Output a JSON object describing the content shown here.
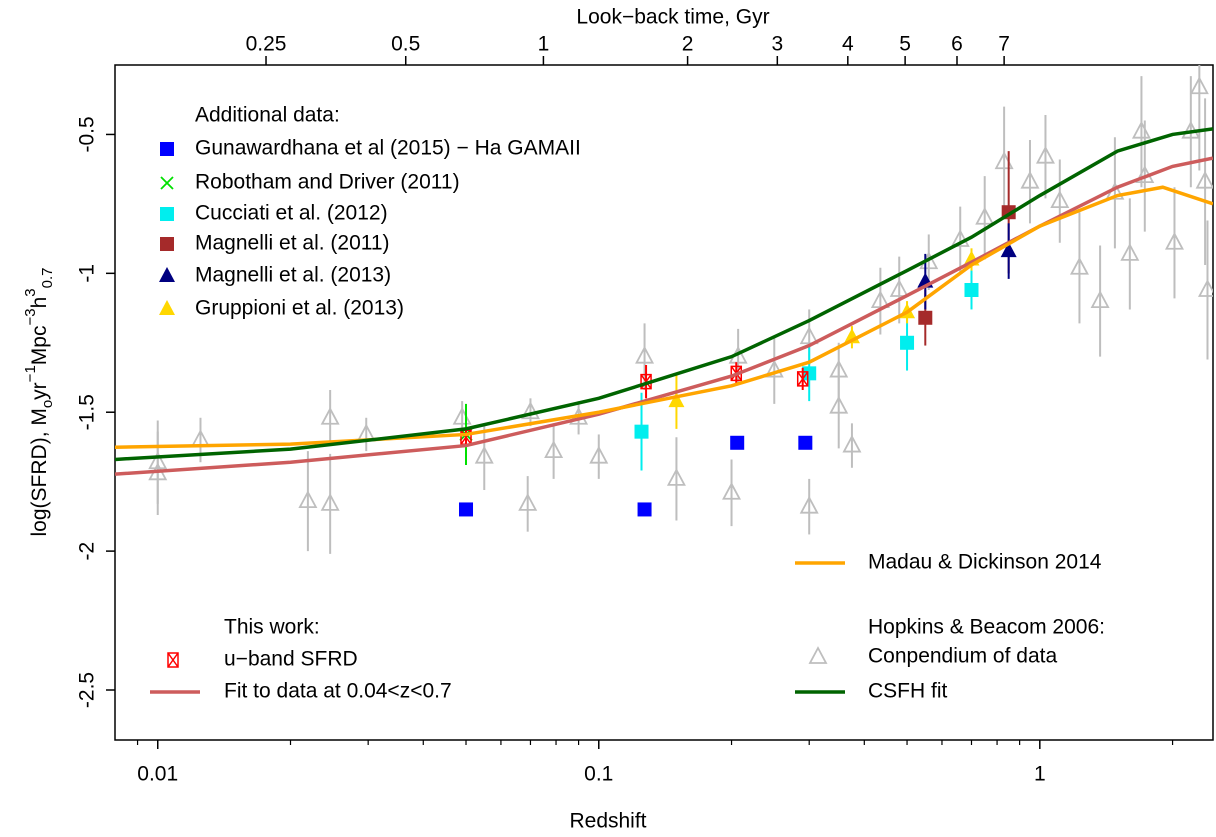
{
  "chart_data": {
    "type": "scatter",
    "xlabel": "Redshift",
    "x2label": "Look−back time, Gyr",
    "ylabel": [
      {
        "text": "log(SFRD), M"
      },
      {
        "text": "o",
        "shift": "sub"
      },
      {
        "text": "yr"
      },
      {
        "text": "−1",
        "shift": "super"
      },
      {
        "text": "Mpc"
      },
      {
        "text": "−3",
        "shift": "super"
      },
      {
        "text": "h"
      },
      {
        "text": "3",
        "shift": "super"
      },
      {
        "text": "0.7",
        "shift": "sub"
      }
    ],
    "xscale": "log",
    "xlim": [
      0.008,
      2.47
    ],
    "ylim": [
      -2.68,
      -0.25
    ],
    "xticks": [
      0.01,
      0.1,
      1
    ],
    "xminorticks": [
      0.009,
      0.02,
      0.03,
      0.04,
      0.05,
      0.06,
      0.07,
      0.08,
      0.09,
      0.2,
      0.3,
      0.4,
      0.5,
      0.6,
      0.7,
      0.8,
      0.9,
      2
    ],
    "x2ticks": [
      {
        "value": 0.0176,
        "label": "0.25"
      },
      {
        "value": 0.0365,
        "label": "0.5"
      },
      {
        "value": 0.0749,
        "label": "1"
      },
      {
        "value": 0.159,
        "label": "2"
      },
      {
        "value": 0.254,
        "label": "3"
      },
      {
        "value": 0.367,
        "label": "4"
      },
      {
        "value": 0.495,
        "label": "5"
      },
      {
        "value": 0.649,
        "label": "6"
      },
      {
        "value": 0.83,
        "label": "7"
      }
    ],
    "yticks": [
      -2.5,
      -2,
      -1.5,
      -1,
      -0.5
    ],
    "legend_titles": [
      "Additional data:",
      "This work:",
      "Hopkins & Beacom 2006:"
    ],
    "series": [
      {
        "name": "Gunawardhana et al (2015) − Ha GAMAII",
        "color": "#0000ff",
        "marker": "square",
        "x": [
          0.05,
          0.127,
          0.206,
          0.294
        ],
        "values": [
          -1.85,
          -1.85,
          -1.61,
          -1.61
        ]
      },
      {
        "name": "Robotham and Driver (2011)",
        "color": "#00e000",
        "marker": "x",
        "x": [
          0.05
        ],
        "values": [
          -1.58
        ],
        "yerr": [
          0.11
        ]
      },
      {
        "name": "Cucciati et al. (2012)",
        "color": "#00eeee",
        "marker": "square",
        "x": [
          0.125,
          0.3,
          0.5,
          0.7
        ],
        "values": [
          -1.57,
          -1.36,
          -1.25,
          -1.06
        ],
        "yerr": [
          0.14,
          0.1,
          0.1,
          0.07
        ]
      },
      {
        "name": "Magnelli et al. (2011)",
        "color": "#a52a2a",
        "marker": "square",
        "x": [
          0.55,
          0.85
        ],
        "values": [
          -1.16,
          -0.78
        ],
        "yerr": [
          0.1,
          0.22
        ]
      },
      {
        "name": "Magnelli et al. (2013)",
        "color": "#000080",
        "marker": "triangle",
        "x": [
          0.55,
          0.85
        ],
        "values": [
          -1.03,
          -0.92
        ],
        "yerr": [
          0.1,
          0.1
        ]
      },
      {
        "name": "Gruppioni et al. (2013)",
        "color": "#ffd700",
        "marker": "triangle",
        "x": [
          0.15,
          0.375,
          0.5,
          0.7
        ],
        "values": [
          -1.46,
          -1.23,
          -1.14,
          -0.95
        ],
        "yerr": [
          0.1,
          0.04,
          0.04,
          0.04
        ]
      },
      {
        "name": "u−band SFRD",
        "color": "#ff0000",
        "marker": "boxx",
        "x": [
          0.05,
          0.128,
          0.205,
          0.29
        ],
        "values": [
          -1.59,
          -1.39,
          -1.36,
          -1.38
        ],
        "yerr": [
          0.03,
          0.06,
          0.04,
          0.04
        ]
      },
      {
        "name": "Fit to data at 0.04<z<0.7",
        "color": "#cd5c5c",
        "marker": "line",
        "x": [
          0.008,
          0.02,
          0.05,
          0.1,
          0.2,
          0.3,
          0.5,
          0.7,
          1,
          1.5,
          2,
          2.47
        ],
        "values": [
          -1.723,
          -1.68,
          -1.62,
          -1.507,
          -1.37,
          -1.26,
          -1.08,
          -0.96,
          -0.83,
          -0.69,
          -0.615,
          -0.585
        ]
      },
      {
        "name": "Madau & Dickinson 2014",
        "color": "#ffa500",
        "marker": "line",
        "x": [
          0.008,
          0.02,
          0.05,
          0.1,
          0.2,
          0.3,
          0.5,
          0.7,
          1,
          1.5,
          1.9,
          2.47
        ],
        "values": [
          -1.626,
          -1.615,
          -1.58,
          -1.5,
          -1.405,
          -1.32,
          -1.14,
          -0.97,
          -0.83,
          -0.72,
          -0.69,
          -0.75
        ]
      },
      {
        "name": "Conpendium of data",
        "color": "#bebebe",
        "marker": "open-triangle",
        "x": [
          0.01,
          0.01,
          0.0125,
          0.0219,
          0.0246,
          0.0246,
          0.0297,
          0.049,
          0.055,
          0.069,
          0.07,
          0.079,
          0.09,
          0.1,
          0.127,
          0.15,
          0.2,
          0.207,
          0.25,
          0.3,
          0.3,
          0.35,
          0.35,
          0.375,
          0.435,
          0.48,
          0.56,
          0.66,
          0.75,
          0.83,
          0.95,
          1.03,
          1.11,
          1.23,
          1.37,
          1.48,
          1.6,
          1.7,
          1.73,
          2.02,
          2.2,
          2.3,
          2.37,
          2.4
        ],
        "values": [
          -1.68,
          -1.72,
          -1.6,
          -1.82,
          -1.83,
          -1.52,
          -1.58,
          -1.52,
          -1.66,
          -1.83,
          -1.5,
          -1.64,
          -1.52,
          -1.66,
          -1.3,
          -1.74,
          -1.79,
          -1.3,
          -1.35,
          -1.84,
          -1.23,
          -1.35,
          -1.48,
          -1.62,
          -1.1,
          -1.06,
          -0.96,
          -0.88,
          -0.8,
          -0.6,
          -0.67,
          -0.58,
          -0.74,
          -0.98,
          -1.1,
          -0.71,
          -0.93,
          -0.49,
          -0.65,
          -0.89,
          -0.49,
          -0.33,
          -0.67,
          -1.06
        ],
        "yerr": [
          0.15,
          0.15,
          0.08,
          0.18,
          0.18,
          0.1,
          0.06,
          0.06,
          0.12,
          0.1,
          0.05,
          0.1,
          0.06,
          0.08,
          0.12,
          0.15,
          0.12,
          0.1,
          0.12,
          0.1,
          0.1,
          0.1,
          0.15,
          0.08,
          0.12,
          0.12,
          0.1,
          0.12,
          0.15,
          0.2,
          0.15,
          0.15,
          0.15,
          0.2,
          0.2,
          0.2,
          0.2,
          0.2,
          0.2,
          0.2,
          0.2,
          0.3,
          0.3,
          0.25
        ]
      },
      {
        "name": "CSFH fit",
        "color": "#006400",
        "marker": "line",
        "x": [
          0.008,
          0.02,
          0.05,
          0.1,
          0.2,
          0.3,
          0.5,
          0.7,
          1,
          1.5,
          2,
          2.47
        ],
        "values": [
          -1.67,
          -1.633,
          -1.56,
          -1.45,
          -1.3,
          -1.17,
          -0.99,
          -0.87,
          -0.72,
          -0.56,
          -0.5,
          -0.48
        ]
      }
    ]
  }
}
